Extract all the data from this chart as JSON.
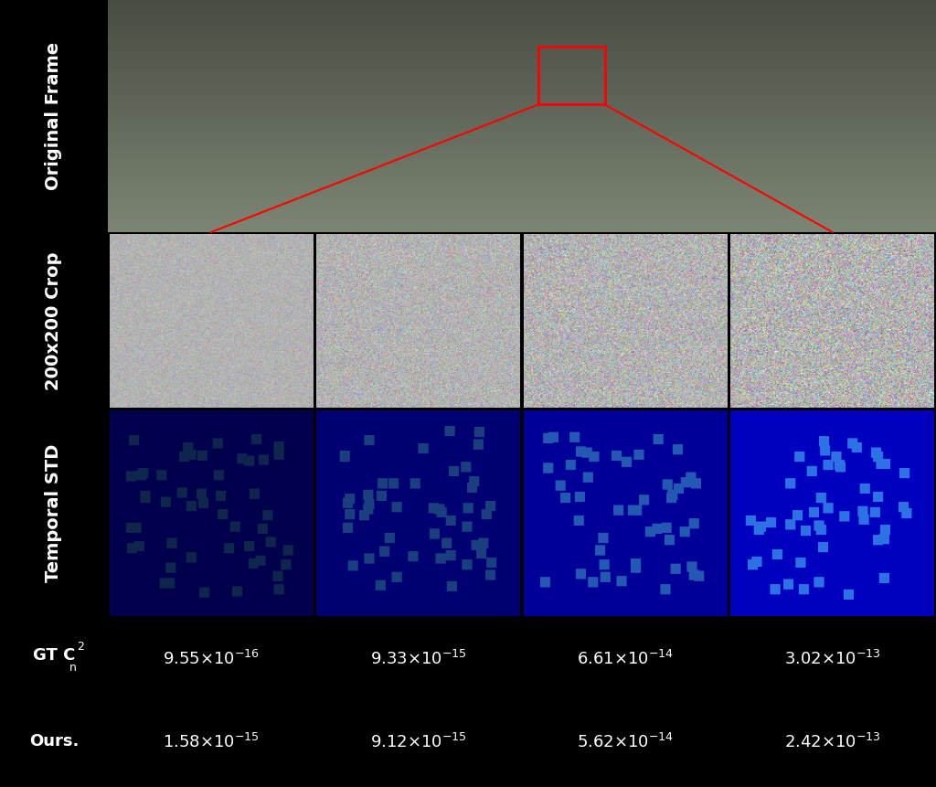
{
  "title": "",
  "row_labels": [
    "Original Frame",
    "200x200 Crop",
    "Temporal STD"
  ],
  "row_label_fontsize": 14,
  "gt_label": "GT C_n^2",
  "ours_label": "Ours.",
  "gt_values": [
    "9.55×10^{-16}",
    "9.33×10^{-15}",
    "6.61×10^{-14}",
    "3.02×10^{-13}"
  ],
  "ours_values": [
    "1.58×10^{-15}",
    "9.12×10^{-15}",
    "5.62×10^{-14}",
    "2.42×10^{-13}"
  ],
  "gt_values_display": [
    "9.55×10⁻¹⁶",
    "9.33×10⁻¹⁵",
    "6.61×10⁻¹⁴",
    "3.02×10⁻¹³"
  ],
  "ours_values_display": [
    "1.58×10⁻¹⁵",
    "9.12×10⁻¹⁵",
    "5.62×10⁻¹⁴",
    "2.42×10⁻¹³"
  ],
  "background_color": "#000000",
  "text_color": "#ffffff",
  "label_bg_color": "#000000",
  "border_color": "#ffffff",
  "figure_width": 10.24,
  "figure_height": 8.61,
  "dpi": 100
}
